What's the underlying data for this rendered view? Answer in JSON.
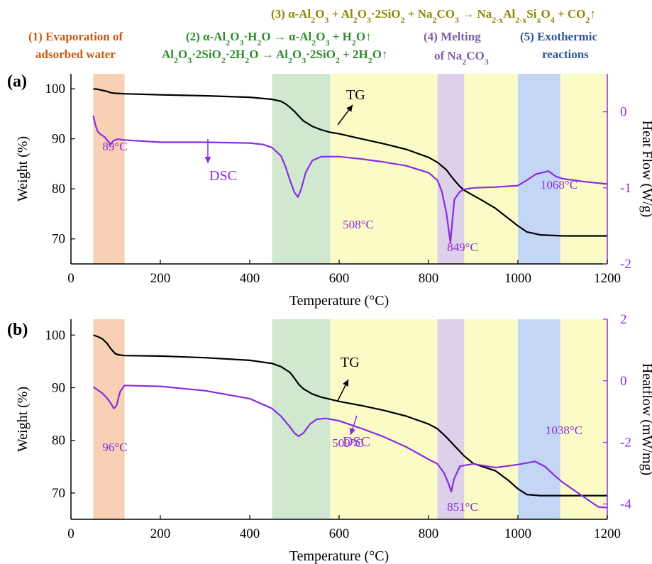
{
  "colors": {
    "water": "#f8d0b4",
    "dehydration": "#cfe8cf",
    "reaction": "#fbfbc8",
    "melting": "#ddd0ea",
    "exothermic": "#c4d6f6",
    "tg": "#000000",
    "dsc": "#8a2be2",
    "annot_water": "#c55a11",
    "annot_dehyd": "#2e8b2e",
    "annot_react": "#8a8a00",
    "annot_melt": "#7b5ea7",
    "annot_exo": "#2f5597"
  },
  "annotations": {
    "water_1": "(1) Evaporation of",
    "water_2": "adsorbed water",
    "dehyd_1": "(2) α-Al2O3·H2O → α-Al2O3 + H2O↑",
    "dehyd_2": "Al2O3·2SiO2·2H2O → Al2O3·2SiO2 + 2H2O↑",
    "react": "(3) α-Al2O3 + Al2O3·2SiO2 + Na2CO3 → Na2-xAl2-xSixO4 + CO2↑",
    "melt_1": "(4) Melting",
    "melt_2": "of Na2CO3",
    "exo_1": "(5) Exothermic",
    "exo_2": "reactions"
  },
  "chart_data": [
    {
      "panel_label": "(a)",
      "type": "line",
      "xlabel": "Temperature (°C)",
      "ylabel": "Weight (%)",
      "y2label": "Heat Flow (W/g)",
      "xlim": [
        0,
        1200
      ],
      "ylim": [
        65,
        103
      ],
      "y2lim": [
        -2,
        0.5
      ],
      "xticks": [
        0,
        200,
        400,
        600,
        800,
        1000,
        1200
      ],
      "yticks": [
        70,
        80,
        90,
        100
      ],
      "y2ticks": [
        -2,
        -1,
        0
      ],
      "regions": [
        {
          "name": "evaporation",
          "x": [
            50,
            120
          ],
          "color": "water"
        },
        {
          "name": "dehydration",
          "x": [
            450,
            580
          ],
          "color": "dehydration"
        },
        {
          "name": "reaction",
          "x": [
            580,
            820
          ],
          "color": "reaction"
        },
        {
          "name": "melting",
          "x": [
            820,
            880
          ],
          "color": "melting"
        },
        {
          "name": "reaction",
          "x": [
            880,
            1000
          ],
          "color": "reaction"
        },
        {
          "name": "exothermic",
          "x": [
            1000,
            1095
          ],
          "color": "exothermic"
        },
        {
          "name": "reaction",
          "x": [
            1095,
            1200
          ],
          "color": "reaction"
        }
      ],
      "series": [
        {
          "name": "TG",
          "axis": "left",
          "color": "tg",
          "x": [
            50,
            60,
            70,
            80,
            90,
            100,
            120,
            200,
            300,
            400,
            450,
            470,
            480,
            490,
            500,
            510,
            520,
            540,
            560,
            580,
            600,
            650,
            700,
            750,
            800,
            820,
            840,
            850,
            860,
            870,
            880,
            900,
            920,
            950,
            980,
            1000,
            1020,
            1050,
            1100,
            1150,
            1200
          ],
          "y": [
            100,
            99.9,
            99.7,
            99.5,
            99.2,
            99.1,
            99.0,
            98.8,
            98.6,
            98.3,
            97.9,
            97.5,
            97.0,
            96.3,
            95.5,
            94.5,
            93.6,
            92.5,
            91.8,
            91.3,
            91.0,
            90.0,
            89.0,
            87.9,
            86.3,
            85.3,
            83.8,
            82.6,
            81.5,
            80.5,
            79.7,
            78.7,
            77.7,
            76.1,
            74.0,
            72.6,
            71.4,
            70.8,
            70.6,
            70.6,
            70.6
          ]
        },
        {
          "name": "DSC",
          "axis": "right",
          "color": "dsc",
          "x": [
            50,
            55,
            60,
            65,
            75,
            85,
            89,
            95,
            105,
            120,
            200,
            300,
            400,
            430,
            450,
            470,
            480,
            490,
            500,
            508,
            515,
            525,
            540,
            560,
            580,
            600,
            650,
            700,
            750,
            800,
            820,
            830,
            840,
            845,
            849,
            853,
            858,
            870,
            880,
            900,
            950,
            1000,
            1020,
            1040,
            1068,
            1085,
            1100,
            1150,
            1200
          ],
          "y": [
            -0.05,
            -0.18,
            -0.26,
            -0.29,
            -0.33,
            -0.4,
            -0.43,
            -0.38,
            -0.36,
            -0.37,
            -0.4,
            -0.4,
            -0.41,
            -0.43,
            -0.47,
            -0.58,
            -0.72,
            -0.9,
            -1.06,
            -1.12,
            -1.02,
            -0.8,
            -0.64,
            -0.59,
            -0.59,
            -0.59,
            -0.62,
            -0.66,
            -0.71,
            -0.8,
            -0.9,
            -1.05,
            -1.33,
            -1.55,
            -1.72,
            -1.45,
            -1.15,
            -1.05,
            -1.02,
            -1.0,
            -0.99,
            -0.97,
            -0.9,
            -0.82,
            -0.78,
            -0.85,
            -0.88,
            -0.92,
            -0.95
          ]
        }
      ],
      "peak_labels": [
        {
          "text": "89°C",
          "x": 89
        },
        {
          "text": "508°C",
          "x": 508
        },
        {
          "text": "849°C",
          "x": 849
        },
        {
          "text": "1068°C",
          "x": 1068
        }
      ],
      "curve_labels": {
        "tg": "TG",
        "dsc": "DSC"
      }
    },
    {
      "panel_label": "(b)",
      "type": "line",
      "xlabel": "Temperature (°C)",
      "ylabel": "Weight (%)",
      "y2label": "Heatflow (mW/mg)",
      "xlim": [
        0,
        1200
      ],
      "ylim": [
        65,
        103
      ],
      "y2lim": [
        -4.5,
        2
      ],
      "xticks": [
        0,
        200,
        400,
        600,
        800,
        1000,
        1200
      ],
      "yticks": [
        70,
        80,
        90,
        100
      ],
      "y2ticks": [
        -4,
        -2,
        0,
        2
      ],
      "regions": [
        {
          "name": "evaporation",
          "x": [
            50,
            120
          ],
          "color": "water"
        },
        {
          "name": "dehydration",
          "x": [
            450,
            580
          ],
          "color": "dehydration"
        },
        {
          "name": "reaction",
          "x": [
            580,
            820
          ],
          "color": "reaction"
        },
        {
          "name": "melting",
          "x": [
            820,
            880
          ],
          "color": "melting"
        },
        {
          "name": "reaction",
          "x": [
            880,
            1000
          ],
          "color": "reaction"
        },
        {
          "name": "exothermic",
          "x": [
            1000,
            1095
          ],
          "color": "exothermic"
        },
        {
          "name": "reaction",
          "x": [
            1095,
            1200
          ],
          "color": "reaction"
        }
      ],
      "series": [
        {
          "name": "TG",
          "axis": "left",
          "color": "tg",
          "x": [
            50,
            60,
            70,
            80,
            90,
            100,
            110,
            120,
            200,
            300,
            400,
            450,
            470,
            490,
            500,
            510,
            520,
            540,
            560,
            580,
            600,
            650,
            700,
            750,
            800,
            820,
            840,
            860,
            880,
            900,
            950,
            980,
            1000,
            1020,
            1050,
            1100,
            1150,
            1200
          ],
          "y": [
            100,
            99.7,
            99.3,
            98.5,
            97.3,
            96.4,
            96.2,
            96.1,
            96.0,
            95.7,
            95.2,
            94.6,
            94.0,
            92.9,
            91.8,
            90.6,
            89.8,
            88.8,
            88.2,
            87.8,
            87.4,
            86.6,
            85.7,
            84.6,
            83.1,
            82.2,
            80.6,
            78.8,
            77.0,
            75.6,
            74.2,
            72.3,
            70.8,
            69.7,
            69.5,
            69.5,
            69.5,
            69.5
          ]
        },
        {
          "name": "DSC",
          "axis": "right",
          "color": "dsc",
          "x": [
            50,
            60,
            70,
            80,
            90,
            96,
            102,
            110,
            120,
            200,
            300,
            400,
            450,
            470,
            490,
            500,
            509,
            520,
            535,
            550,
            570,
            600,
            650,
            700,
            750,
            800,
            820,
            835,
            845,
            851,
            857,
            870,
            880,
            900,
            950,
            1000,
            1038,
            1060,
            1080,
            1100,
            1150,
            1180,
            1200
          ],
          "y": [
            -0.2,
            -0.3,
            -0.4,
            -0.55,
            -0.75,
            -0.9,
            -0.8,
            -0.35,
            -0.15,
            -0.18,
            -0.32,
            -0.58,
            -0.9,
            -1.15,
            -1.5,
            -1.7,
            -1.8,
            -1.7,
            -1.4,
            -1.25,
            -1.22,
            -1.3,
            -1.55,
            -1.82,
            -2.15,
            -2.55,
            -2.7,
            -3.0,
            -3.35,
            -3.6,
            -3.2,
            -2.78,
            -2.75,
            -2.7,
            -2.82,
            -2.72,
            -2.62,
            -2.78,
            -3.05,
            -3.3,
            -3.8,
            -4.1,
            -4.12
          ]
        }
      ],
      "peak_labels": [
        {
          "text": "96°C",
          "x": 96
        },
        {
          "text": "509°C",
          "x": 509
        },
        {
          "text": "851°C",
          "x": 851
        },
        {
          "text": "1038°C",
          "x": 1038
        }
      ],
      "curve_labels": {
        "tg": "TG",
        "dsc": "DSC"
      }
    }
  ]
}
